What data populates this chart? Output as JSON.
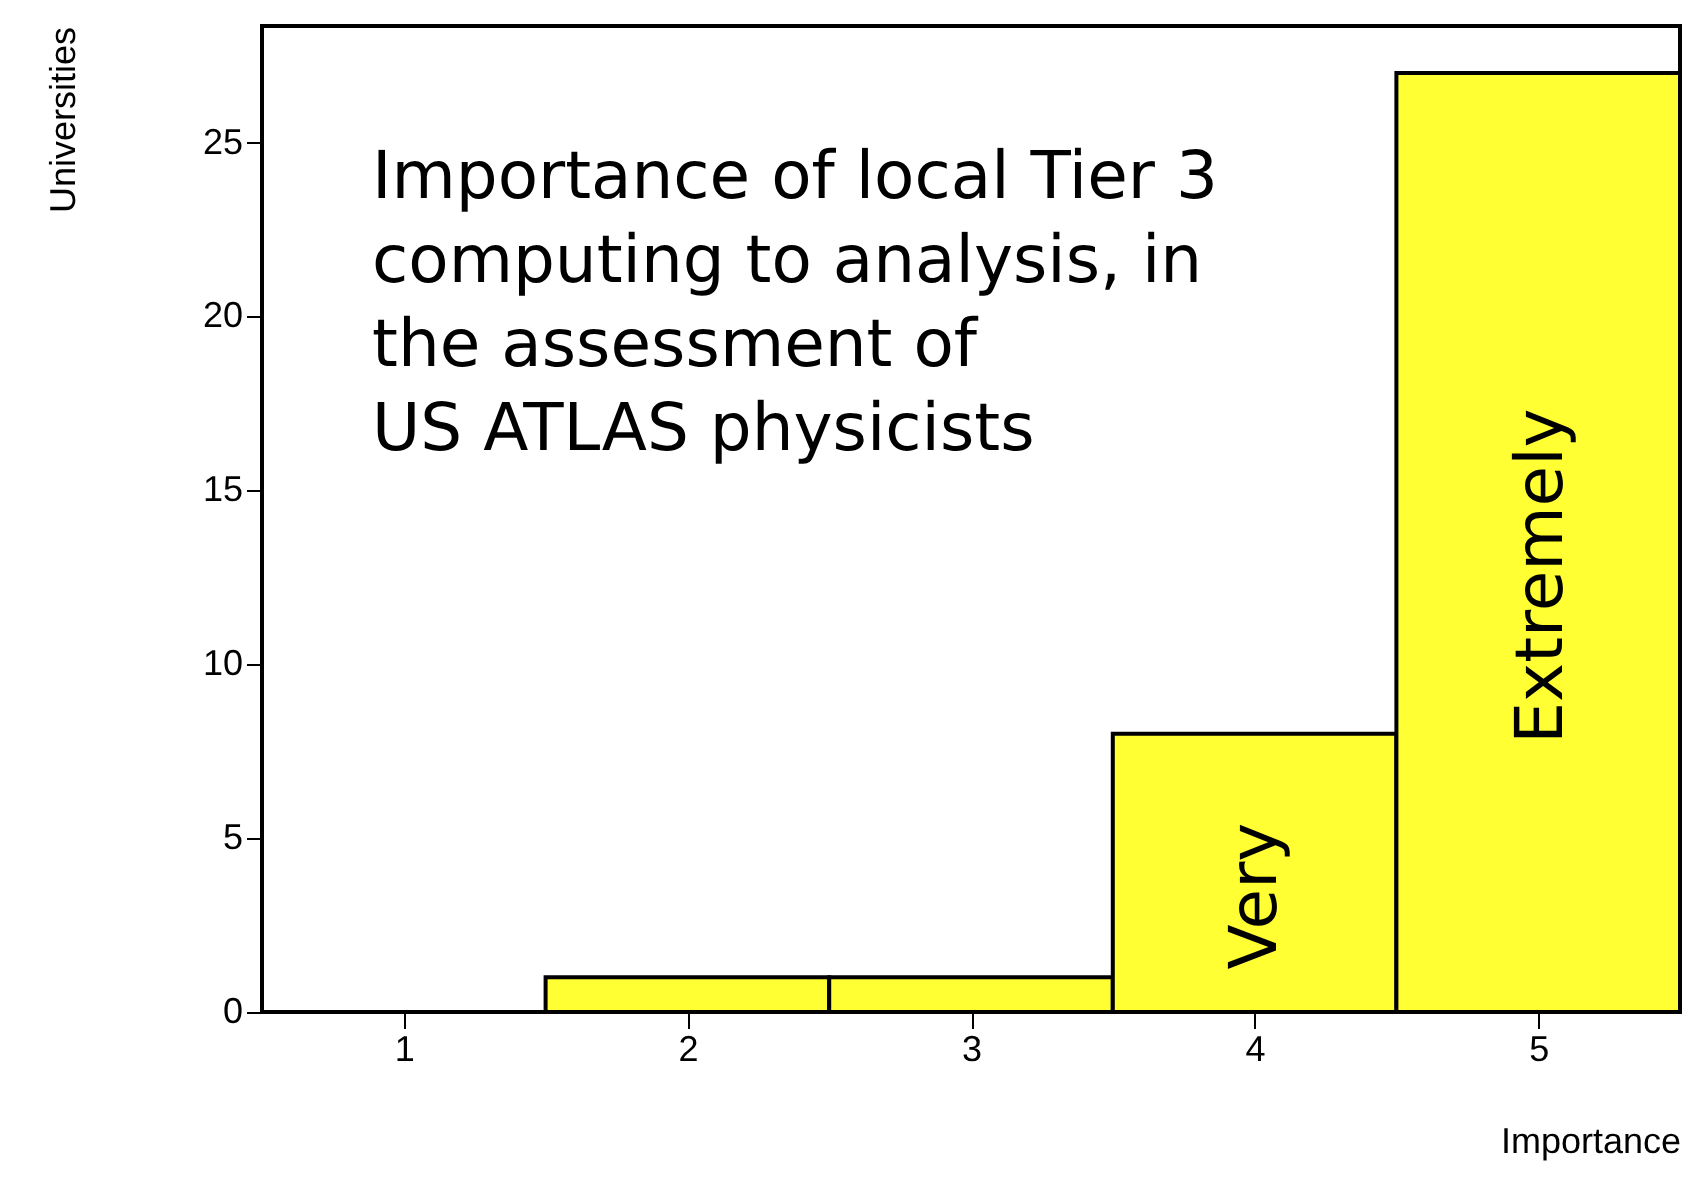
{
  "chart_data": {
    "type": "histogram",
    "xlabel": "Importance",
    "ylabel": "Universities",
    "bins": [
      0.5,
      1.5,
      2.5,
      3.5,
      4.5,
      5.5
    ],
    "values": [
      0,
      1,
      1,
      8,
      27
    ],
    "color": "#ffff33",
    "xlim": [
      0.5,
      5.5
    ],
    "xticks": [
      1,
      2,
      3,
      4,
      5
    ],
    "ylim": [
      0,
      28.35
    ],
    "yticks": [
      0,
      5,
      10,
      15,
      20,
      25
    ],
    "annotations": [
      "Importance of local Tier 3\ncomputing to analysis, in\nthe assessment of\nUS ATLAS physicists",
      "Very",
      "Extremely"
    ]
  }
}
